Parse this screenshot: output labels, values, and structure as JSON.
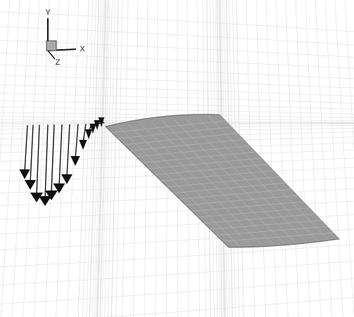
{
  "axes": {
    "y_label": "Y",
    "x_label": "X",
    "z_label": "Z"
  }
}
